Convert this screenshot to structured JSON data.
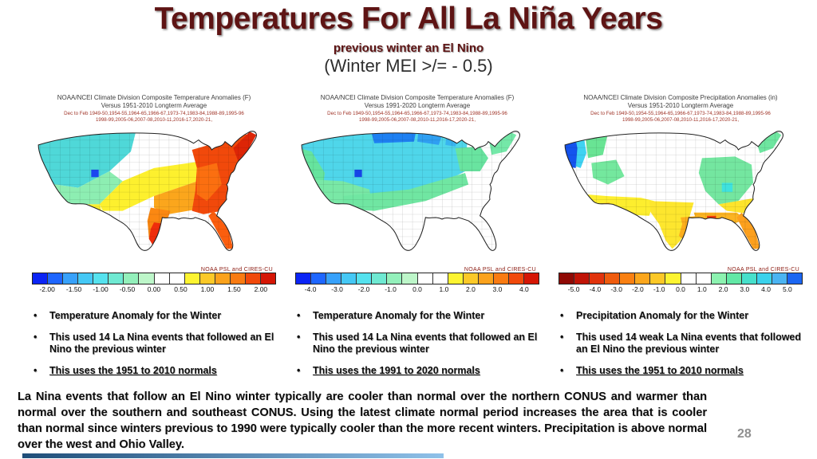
{
  "slide": {
    "title": "Temperatures For All La Niña Years",
    "subtitle_line1": "previous winter an El  Nino",
    "subtitle_line2": "(Winter MEI >/= - 0.5)",
    "footer_text": "La Nina events that follow an El Nino winter typically are cooler than normal over the northern CONUS  and warmer than normal over the southern and southeast CONUS.  Using the latest climate normal period increases the area that is cooler than normal since winters previous to 1990 were typically cooler than the more recent winters.  Precipitation is above normal over the west and Ohio Valley.",
    "page_number": "28",
    "accent": {
      "title_color": "#5e1414",
      "footer_bar_gradient": [
        "#1f4e79",
        "#8fc1e9"
      ],
      "page_number_color": "#8f8f8f"
    }
  },
  "panels": [
    {
      "header_line1": "NOAA/NCEI Climate Division Composite Temperature Anomalies (F)",
      "header_line2": "Versus 1951-2010 Longterm Average",
      "events_line1": "Dec to Feb   1949-50,1954-55,1964-65,1966-67,1973-74,1983-84,1988-89,1995-96",
      "events_line2": "1998-99,2005-06,2007-08,2010-11,2016-17,2020-21,",
      "credit": "NOAA PSL and CIRES-CU",
      "colorbar": {
        "colors": [
          "#0b24f5",
          "#1e66ff",
          "#37a1fb",
          "#45c8f5",
          "#55e2ee",
          "#6fe9d2",
          "#93f0bb",
          "#bdf6c9",
          "#ffffff",
          "#ffffff",
          "#fdf431",
          "#fcc928",
          "#fba21c",
          "#fa7b12",
          "#f1490b",
          "#d51605"
        ],
        "ticks": [
          "-2.00",
          "-1.50",
          "-1.00",
          "-0.50",
          "0.00",
          "0.50",
          "1.00",
          "1.50",
          "2.00"
        ]
      },
      "bullets": [
        {
          "text": "Temperature Anomaly for the Winter",
          "underline": false
        },
        {
          "text": "This used  14  La Nina events  that followed an El Nino  the previous winter",
          "underline": false
        },
        {
          "text": "This uses the 1951 to 2010 normals",
          "underline": true
        }
      ]
    },
    {
      "header_line1": "NOAA/NCEI Climate Division Composite Temperature Anomalies (F)",
      "header_line2": "Versus 1991-2020 Longterm Average",
      "events_line1": "Dec to Feb   1949-50,1954-55,1964-65,1966-67,1973-74,1983-84,1988-89,1995-96",
      "events_line2": "1998-99,2005-06,2007-08,2010-11,2016-17,2020-21,",
      "credit": "NOAA PSL and CIRES-CU",
      "colorbar": {
        "colors": [
          "#0b24f5",
          "#1e66ff",
          "#37a1fb",
          "#45c8f5",
          "#55e2ee",
          "#6fe9d2",
          "#93f0bb",
          "#bdf6c9",
          "#ffffff",
          "#ffffff",
          "#fdf431",
          "#fcc928",
          "#fba21c",
          "#fa7b12",
          "#f1490b",
          "#d51605"
        ],
        "ticks": [
          "-4.0",
          "-3.0",
          "-2.0",
          "-1.0",
          "0.0",
          "1.0",
          "2.0",
          "3.0",
          "4.0"
        ]
      },
      "bullets": [
        {
          "text": "Temperature Anomaly for the Winter",
          "underline": false
        },
        {
          "text": "This used  14  La Nina events  that followed an El Nino  the previous winter",
          "underline": false
        },
        {
          "text": "This uses the 1991 to 2020 normals",
          "underline": true
        }
      ]
    },
    {
      "header_line1": "NOAA/NCEI Climate Division Composite Precipitation Anomalies (in)",
      "header_line2": "Versus 1951-2010 Longterm Average",
      "events_line1": "Dec to Feb   1949-50,1954-55,1964-65,1966-67,1973-74,1983-84,1988-89,1995-96",
      "events_line2": "1998-99,2005-06,2007-08,2010-11,2016-17,2020-21,",
      "credit": "NOAA PSL and CIRES-CU",
      "colorbar": {
        "colors": [
          "#8f0a05",
          "#c01407",
          "#e1330c",
          "#ef5c0e",
          "#f98012",
          "#fba61c",
          "#fcc827",
          "#fdf431",
          "#ffffff",
          "#ffffff",
          "#8cf2b0",
          "#62e8a6",
          "#47e0cb",
          "#3bd2ec",
          "#4bb4f2",
          "#1b66f2"
        ],
        "ticks": [
          "-5.0",
          "-4.0",
          "-3.0",
          "-2.0",
          "-1.0",
          "0.0",
          "1.0",
          "2.0",
          "3.0",
          "4.0",
          "5.0"
        ]
      },
      "bullets": [
        {
          "text": "Precipitation Anomaly for the Winter",
          "underline": false
        },
        {
          "text": "This used  14 weak La Nina events  that followed an El Nino  the previous winter",
          "underline": false
        },
        {
          "text": "This uses the 1951 to 2010 normals",
          "underline": true
        }
      ]
    }
  ]
}
